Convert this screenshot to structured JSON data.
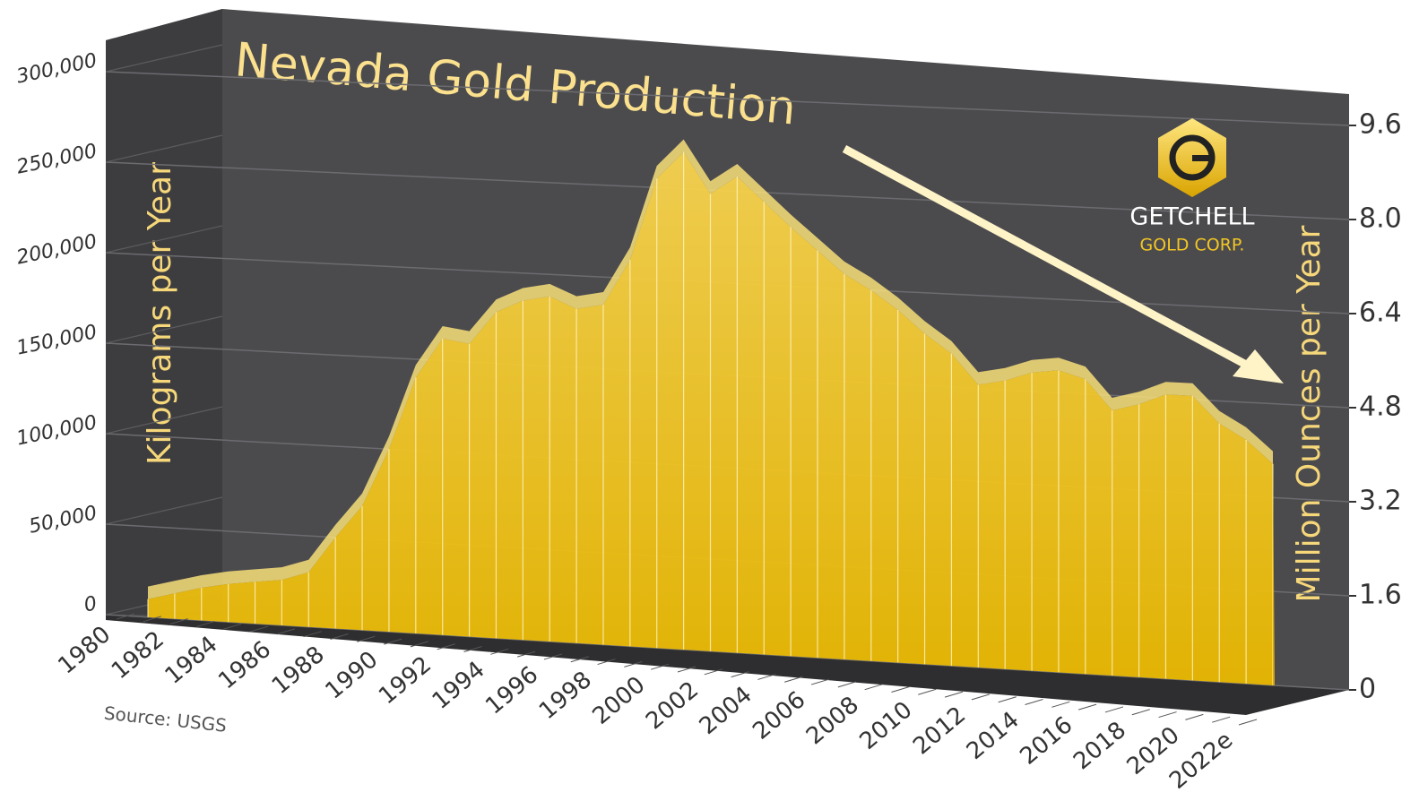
{
  "chart_data": {
    "type": "area",
    "title": "Nevada Gold Production",
    "y_label": "Kilograms per Year",
    "y2_label": "Million Ounces per Year",
    "source": "Source: USGS",
    "logo_name": "GETCHELL",
    "logo_sub": "GOLD CORP.",
    "categories": [
      "1980",
      null,
      "1982",
      null,
      "1984",
      null,
      "1986",
      null,
      "1988",
      null,
      "1990",
      null,
      "1992",
      null,
      "1994",
      null,
      "1996",
      null,
      "1998",
      null,
      "2000",
      null,
      "2002",
      null,
      "2004",
      null,
      "2006",
      null,
      "2008",
      null,
      "2010",
      null,
      "2012",
      null,
      "2014",
      null,
      "2016",
      null,
      "2018",
      null,
      "2020",
      null,
      "2022e"
    ],
    "values": [
      10000,
      14000,
      18000,
      21000,
      23000,
      25000,
      30000,
      50000,
      68000,
      100000,
      140000,
      162000,
      160000,
      178000,
      185000,
      188000,
      182000,
      185000,
      210000,
      255000,
      270000,
      248000,
      258000,
      245000,
      232000,
      220000,
      208000,
      200000,
      190000,
      178000,
      168000,
      152000,
      155000,
      160000,
      162000,
      158000,
      142000,
      146000,
      152000,
      152000,
      138000,
      130000,
      118000
    ],
    "color": "#f3c623",
    "ylim": [
      0,
      300000
    ],
    "yticks": [
      0,
      {
        "value": 50000,
        "label": "50,000"
      },
      {
        "value": 100000,
        "label": "100,000"
      },
      {
        "value": 150000,
        "label": "150,000"
      },
      {
        "value": 200000,
        "label": "200,000"
      },
      {
        "value": 250000,
        "label": "250,000"
      },
      {
        "value": 300000,
        "label": "300,000"
      }
    ],
    "y2lim": [
      0,
      9.6
    ],
    "y2ticks": [
      0,
      1.6,
      3.2,
      4.8,
      6.4,
      {
        "value": 8,
        "label": "8.0"
      },
      9.6
    ],
    "grid": true
  }
}
